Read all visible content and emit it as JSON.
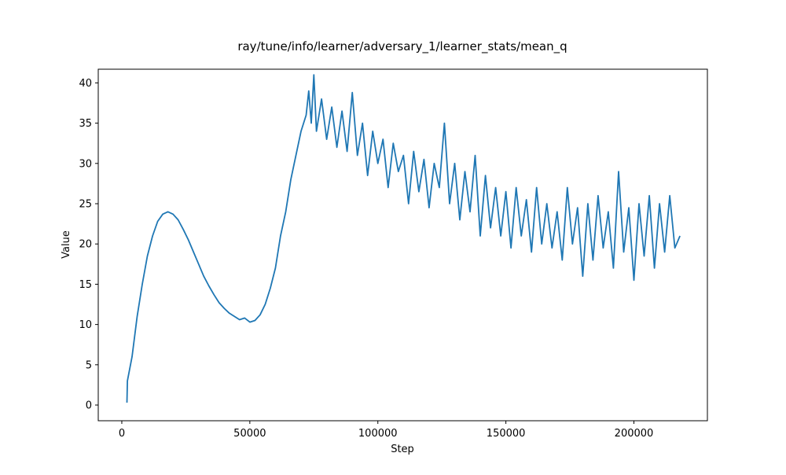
{
  "chart_data": {
    "type": "line",
    "title": "ray/tune/info/learner/adversary_1/learner_stats/mean_q",
    "x_label": "Step",
    "y_label": "Value",
    "color": "#1f77b4",
    "x": [
      2000,
      2200,
      4000,
      6000,
      8000,
      10000,
      12000,
      14000,
      16000,
      18000,
      20000,
      22000,
      24000,
      26000,
      28000,
      30000,
      32000,
      34000,
      36000,
      38000,
      40000,
      42000,
      44000,
      46000,
      48000,
      50000,
      52000,
      54000,
      56000,
      58000,
      60000,
      62000,
      64000,
      66000,
      68000,
      70000,
      72000,
      73000,
      74000,
      75000,
      76000,
      78000,
      80000,
      82000,
      84000,
      86000,
      88000,
      90000,
      92000,
      94000,
      96000,
      98000,
      100000,
      102000,
      104000,
      106000,
      108000,
      110000,
      112000,
      114000,
      116000,
      118000,
      120000,
      122000,
      124000,
      126000,
      128000,
      130000,
      132000,
      134000,
      136000,
      138000,
      140000,
      142000,
      144000,
      146000,
      148000,
      150000,
      152000,
      154000,
      156000,
      158000,
      160000,
      162000,
      164000,
      166000,
      168000,
      170000,
      172000,
      174000,
      176000,
      178000,
      180000,
      182000,
      184000,
      186000,
      188000,
      190000,
      192000,
      194000,
      196000,
      198000,
      200000,
      202000,
      204000,
      206000,
      208000,
      210000,
      212000,
      214000,
      216000,
      218000
    ],
    "values": [
      0.3,
      3,
      6,
      11,
      15,
      18.5,
      21,
      22.8,
      23.7,
      24,
      23.7,
      23,
      21.8,
      20.5,
      19,
      17.5,
      16,
      14.8,
      13.7,
      12.7,
      12,
      11.4,
      11,
      10.6,
      10.8,
      10.3,
      10.5,
      11.2,
      12.5,
      14.5,
      17,
      21,
      24,
      28,
      31,
      34,
      36,
      39,
      35,
      41,
      34,
      38,
      33,
      37,
      32,
      36.5,
      31.5,
      38.8,
      31,
      35,
      28.5,
      34,
      30,
      33,
      27,
      32.5,
      29,
      31,
      25,
      31.5,
      26.5,
      30.5,
      24.5,
      30,
      27,
      35,
      25,
      30,
      23,
      29,
      24,
      31,
      21,
      28.5,
      22,
      27,
      21,
      26.5,
      19.5,
      27,
      21,
      25.5,
      19,
      27,
      20,
      25,
      19.5,
      24,
      18,
      27,
      20,
      24.5,
      16,
      25,
      18,
      26,
      19.5,
      24,
      17,
      29,
      19,
      24.5,
      15.5,
      25,
      18.5,
      26,
      17,
      25,
      19,
      26,
      19.5,
      21
    ],
    "xlim": [
      -9200,
      228700
    ],
    "ylim": [
      -1.95,
      41.7
    ],
    "xticks": [
      0,
      50000,
      100000,
      150000,
      200000
    ],
    "yticks": [
      0,
      5,
      10,
      15,
      20,
      25,
      30,
      35,
      40
    ]
  }
}
